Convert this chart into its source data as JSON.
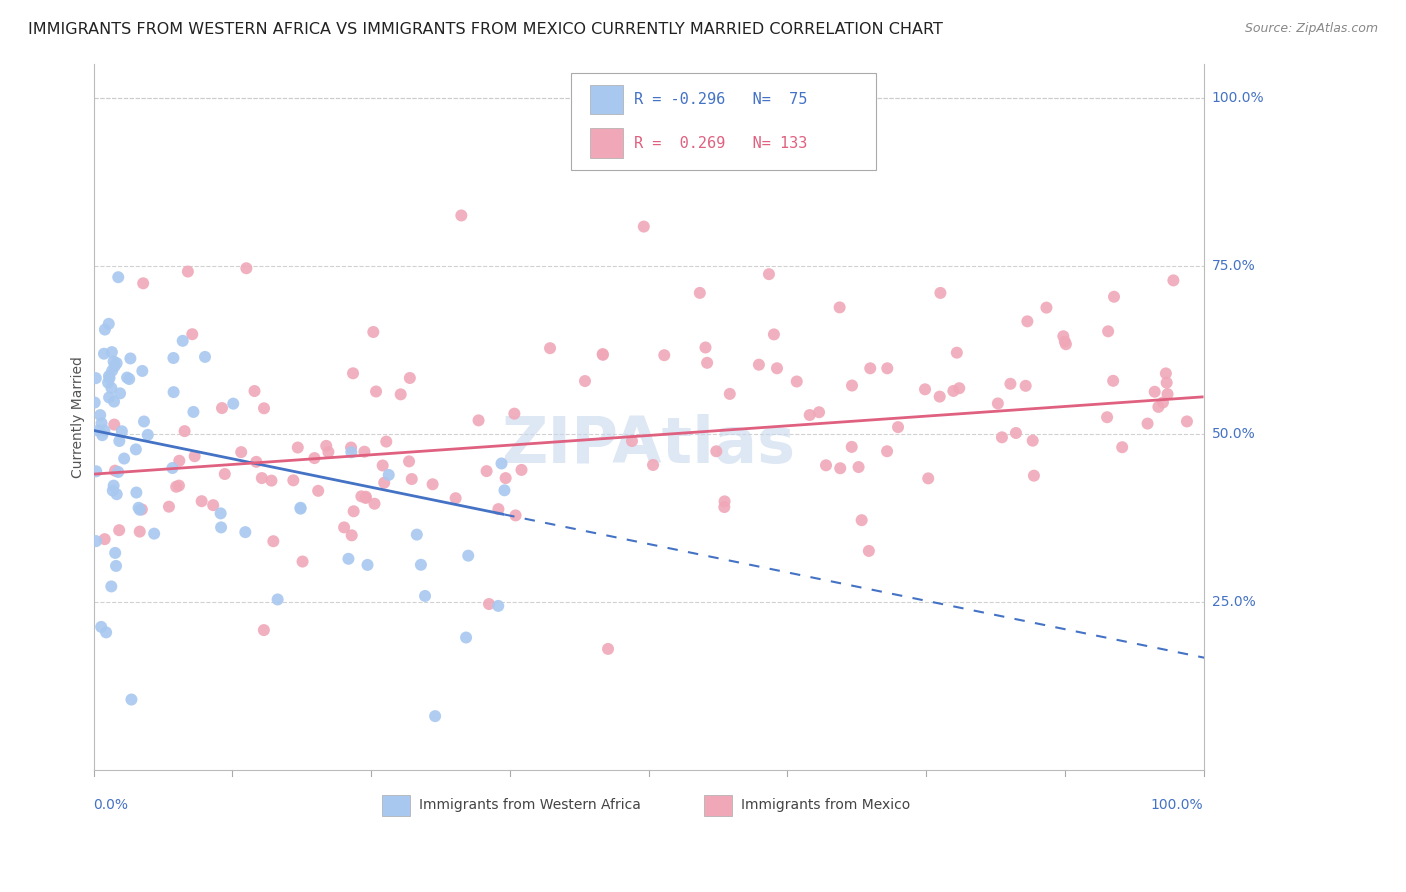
{
  "title": "IMMIGRANTS FROM WESTERN AFRICA VS IMMIGRANTS FROM MEXICO CURRENTLY MARRIED CORRELATION CHART",
  "source": "Source: ZipAtlas.com",
  "ylabel": "Currently Married",
  "color_blue": "#a8c8f0",
  "color_pink": "#f0a8b8",
  "color_blue_line": "#4472c4",
  "color_pink_line": "#e06080",
  "color_blue_label": "#4472c4",
  "watermark_color": "#c8d8ee",
  "background_color": "#ffffff",
  "grid_color": "#cccccc",
  "title_fontsize": 11.5,
  "source_fontsize": 9,
  "tick_fontsize": 10,
  "ylabel_fontsize": 10,
  "legend_fontsize": 11
}
